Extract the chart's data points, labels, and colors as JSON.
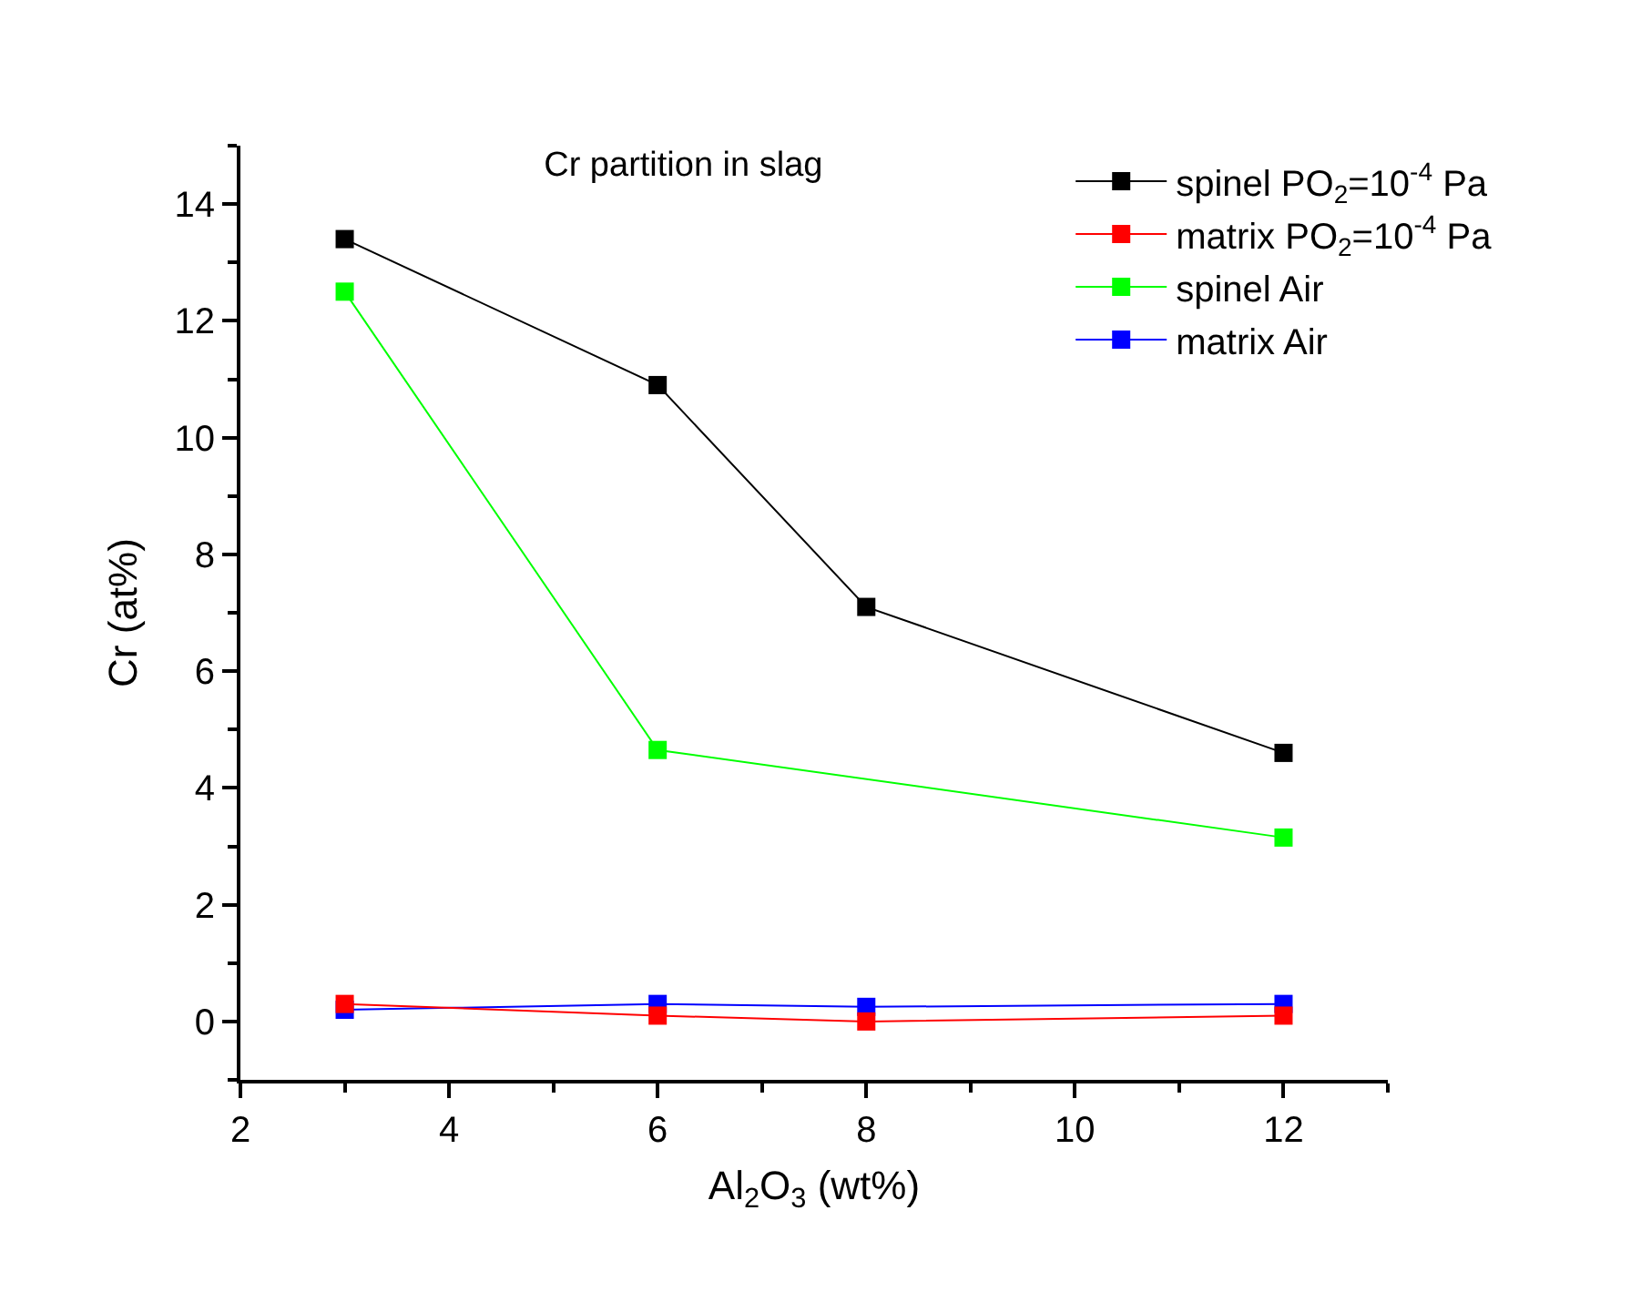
{
  "chart_data": {
    "type": "line",
    "title": "Cr partition in slag",
    "xlabel": "Al$_{2}$O$_{3}$ (wt%)",
    "ylabel": "Cr (at%)",
    "x": [
      3,
      6,
      8,
      12
    ],
    "series": [
      {
        "name": "spinel PO$_{2}$=10$^{-4}$ Pa",
        "color": "#000000",
        "values": [
          13.4,
          10.9,
          7.1,
          4.6
        ]
      },
      {
        "name": "matrix PO$_{2}$=10$^{-4}$ Pa",
        "color": "#ff0000",
        "values": [
          0.3,
          0.1,
          0.0,
          0.1
        ]
      },
      {
        "name": "spinel Air",
        "color": "#00ff00",
        "x": [
          3,
          6,
          12
        ],
        "values": [
          12.5,
          4.65,
          3.15
        ]
      },
      {
        "name": "matrix Air",
        "color": "#0000ff",
        "values": [
          0.2,
          0.3,
          0.25,
          0.3
        ]
      }
    ],
    "xlim": [
      2,
      13
    ],
    "xticks": [
      2,
      4,
      6,
      8,
      10,
      12
    ],
    "ylim": [
      -1,
      15
    ],
    "yticks": [
      0,
      2,
      4,
      6,
      8,
      10,
      12,
      14
    ],
    "legend": "top right",
    "marker": "square",
    "line_style": "solid"
  }
}
